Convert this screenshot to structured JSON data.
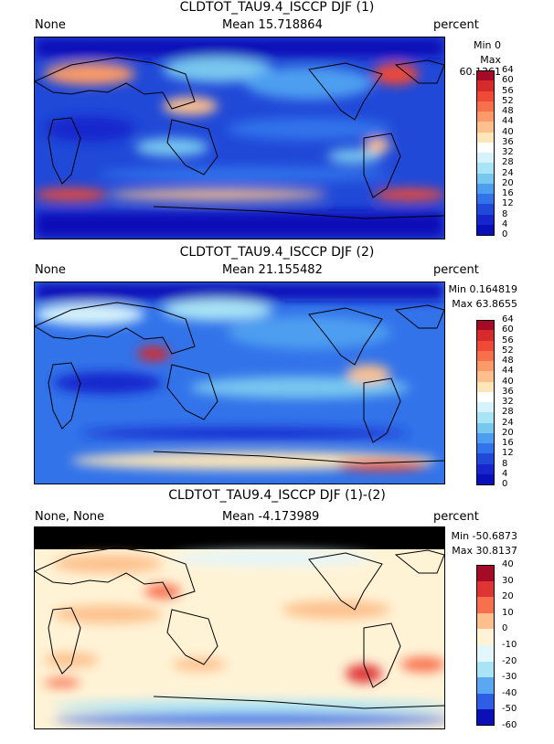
{
  "panels": [
    {
      "title": "CLDTOT_TAU9.4_ISCCP DJF (1)",
      "left_label": "None",
      "mean_label": "Mean 15.718864",
      "units": "percent",
      "min_label": "Min 0",
      "max_label": "Max 60.1361",
      "colorbar_ticks": [
        "64",
        "60",
        "56",
        "52",
        "48",
        "44",
        "40",
        "36",
        "32",
        "28",
        "24",
        "20",
        "16",
        "12",
        "8",
        "4",
        "0"
      ],
      "colorbar_colors": [
        "#a50a26",
        "#d62b2b",
        "#ee4a37",
        "#f6704c",
        "#fb9a68",
        "#fdc08c",
        "#fee6b8",
        "#ffffff",
        "#d6f3fb",
        "#a9e3f6",
        "#78c7ef",
        "#4d9ef0",
        "#3273ea",
        "#2049d8",
        "#1626cc",
        "#0a10b8"
      ]
    },
    {
      "title": "CLDTOT_TAU9.4_ISCCP DJF (2)",
      "left_label": "None",
      "mean_label": "Mean 21.155482",
      "units": "percent",
      "min_label": "Min 0.164819",
      "max_label": "Max 63.8655",
      "colorbar_ticks": [
        "64",
        "60",
        "56",
        "52",
        "48",
        "44",
        "40",
        "36",
        "32",
        "28",
        "24",
        "20",
        "16",
        "12",
        "8",
        "4",
        "0"
      ],
      "colorbar_colors": [
        "#a50a26",
        "#d62b2b",
        "#ee4a37",
        "#f6704c",
        "#fb9a68",
        "#fdc08c",
        "#fee6b8",
        "#ffffff",
        "#d6f3fb",
        "#a9e3f6",
        "#78c7ef",
        "#4d9ef0",
        "#3273ea",
        "#2049d8",
        "#1626cc",
        "#0a10b8"
      ]
    },
    {
      "title": "CLDTOT_TAU9.4_ISCCP DJF (1)-(2)",
      "left_label": "None, None",
      "mean_label": "Mean -4.173989",
      "units": "percent",
      "min_label": "Min -50.6873",
      "max_label": "Max 30.8137",
      "colorbar_ticks": [
        "40",
        "30",
        "20",
        "10",
        "0",
        "-10",
        "-20",
        "-30",
        "-40",
        "-50",
        "-60"
      ],
      "colorbar_colors": [
        "#a50a26",
        "#de3434",
        "#f7704e",
        "#fdc08c",
        "#fff3d6",
        "#e2f6fc",
        "#a9e3f6",
        "#5aa8f2",
        "#2c5ee6",
        "#0a10b8"
      ]
    }
  ]
}
